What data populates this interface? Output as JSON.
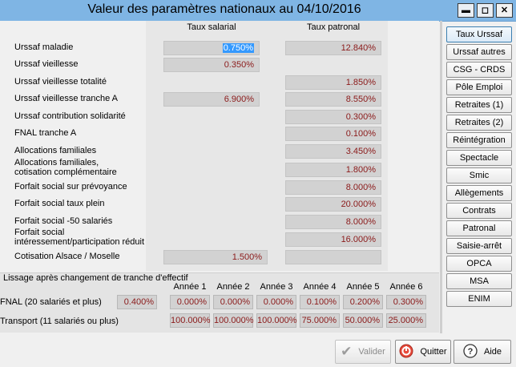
{
  "window": {
    "title": "Valeur des paramètres nationaux au 04/10/2016",
    "minimize_label": "▬",
    "maximize_label": "◻",
    "close_label": "✕"
  },
  "columns": {
    "salarial": "Taux salarial",
    "patronal": "Taux patronal"
  },
  "rows": [
    {
      "label": "Urssaf maladie",
      "salarial": "0.750%",
      "patronal": "12.840%"
    },
    {
      "label": "Urssaf vieillesse",
      "salarial": "0.350%",
      "patronal": ""
    },
    {
      "label": "Urssaf vieillesse totalité",
      "salarial": "",
      "patronal": "1.850%"
    },
    {
      "label": "Urssaf vieillesse tranche A",
      "salarial": "6.900%",
      "patronal": "8.550%"
    },
    {
      "label": "Urssaf contribution solidarité",
      "salarial": "",
      "patronal": "0.300%"
    },
    {
      "label": "FNAL tranche A",
      "salarial": "",
      "patronal": "0.100%"
    },
    {
      "label": "Allocations familiales",
      "salarial": "",
      "patronal": "3.450%"
    },
    {
      "label": "Allocations familiales,\ncotisation complémentaire",
      "salarial": "",
      "patronal": "1.800%"
    },
    {
      "label": "Forfait social sur prévoyance",
      "salarial": "",
      "patronal": "8.000%"
    },
    {
      "label": "Forfait social taux plein",
      "salarial": "",
      "patronal": "20.000%"
    },
    {
      "label": "Forfait social -50 salariés",
      "salarial": "",
      "patronal": "8.000%"
    },
    {
      "label": "Forfait social\nintéressement/participation réduit",
      "salarial": "",
      "patronal": "16.000%"
    },
    {
      "label": "Cotisation Alsace / Moselle",
      "salarial": "1.500%",
      "patronal": ""
    }
  ],
  "lissage": {
    "caption": "Lissage après changement de tranche d'effectif",
    "years": [
      "Année 1",
      "Année 2",
      "Année 3",
      "Année 4",
      "Année 5",
      "Année 6"
    ],
    "fnal": {
      "label": "FNAL (20 salariés et plus)",
      "rate": "0.400%",
      "values": [
        "0.000%",
        "0.000%",
        "0.000%",
        "0.100%",
        "0.200%",
        "0.300%"
      ]
    },
    "transport": {
      "label": "Transport (11 salariés ou plus)",
      "values": [
        "100.000%",
        "100.000%",
        "100.000%",
        "75.000%",
        "50.000%",
        "25.000%"
      ]
    }
  },
  "sidebar": [
    "Taux Urssaf",
    "Urssaf autres",
    "CSG - CRDS",
    "Pôle Emploi",
    "Retraites (1)",
    "Retraites (2)",
    "Réintégration",
    "Spectacle",
    "Smic",
    "Allègements",
    "Contrats",
    "Patronal",
    "Saisie-arrêt",
    "OPCA",
    "MSA",
    "ENIM"
  ],
  "buttons": {
    "valider": "Valider",
    "quitter": "Quitter",
    "aide": "Aide"
  }
}
